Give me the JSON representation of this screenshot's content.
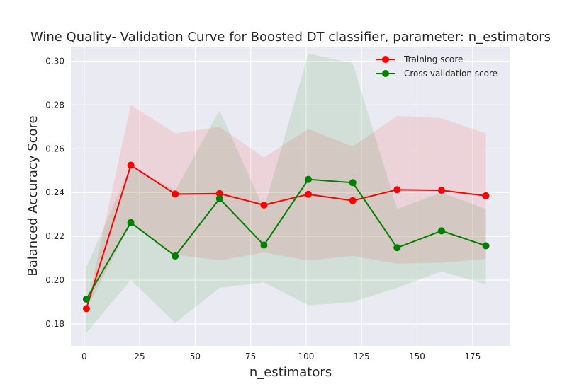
{
  "chart_data": {
    "type": "line",
    "title": "Wine Quality- Validation Curve for Boosted DT classifier, parameter: n_estimators",
    "xlabel": "n_estimators",
    "ylabel": "Balanced Accuracy Score",
    "xlim": [
      -6,
      192
    ],
    "ylim": [
      0.17,
      0.3066
    ],
    "xticks": [
      0,
      25,
      50,
      75,
      100,
      125,
      150,
      175
    ],
    "yticks": [
      0.18,
      0.2,
      0.22,
      0.24,
      0.26,
      0.28,
      0.3
    ],
    "ytick_labels": [
      "0.18",
      "0.20",
      "0.22",
      "0.24",
      "0.26",
      "0.28",
      "0.30"
    ],
    "grid": true,
    "legend_position": "top-right",
    "x": [
      1,
      21,
      41,
      61,
      81,
      101,
      121,
      141,
      161,
      181
    ],
    "series": [
      {
        "name": "Training score",
        "color": "#ff0000",
        "values": [
          0.187,
          0.2525,
          0.2393,
          0.2395,
          0.2343,
          0.2392,
          0.2363,
          0.2413,
          0.241,
          0.2385
        ],
        "band_lower": [
          0.187,
          0.2255,
          0.2116,
          0.209,
          0.2126,
          0.209,
          0.211,
          0.2075,
          0.208,
          0.2096
        ],
        "band_upper": [
          0.187,
          0.28,
          0.267,
          0.27,
          0.256,
          0.269,
          0.261,
          0.275,
          0.274,
          0.267
        ],
        "band_color": "#ff0000"
      },
      {
        "name": "Cross-validation score",
        "color": "#008000",
        "values": [
          0.1913,
          0.2263,
          0.211,
          0.2372,
          0.216,
          0.246,
          0.2445,
          0.2148,
          0.2225,
          0.2157
        ],
        "band_lower": [
          0.176,
          0.2,
          0.1805,
          0.1965,
          0.199,
          0.1885,
          0.19,
          0.1965,
          0.204,
          0.198
        ],
        "band_upper": [
          0.206,
          0.252,
          0.241,
          0.2775,
          0.2325,
          0.3035,
          0.299,
          0.2325,
          0.24,
          0.2325
        ],
        "band_color": "#008000"
      }
    ]
  }
}
